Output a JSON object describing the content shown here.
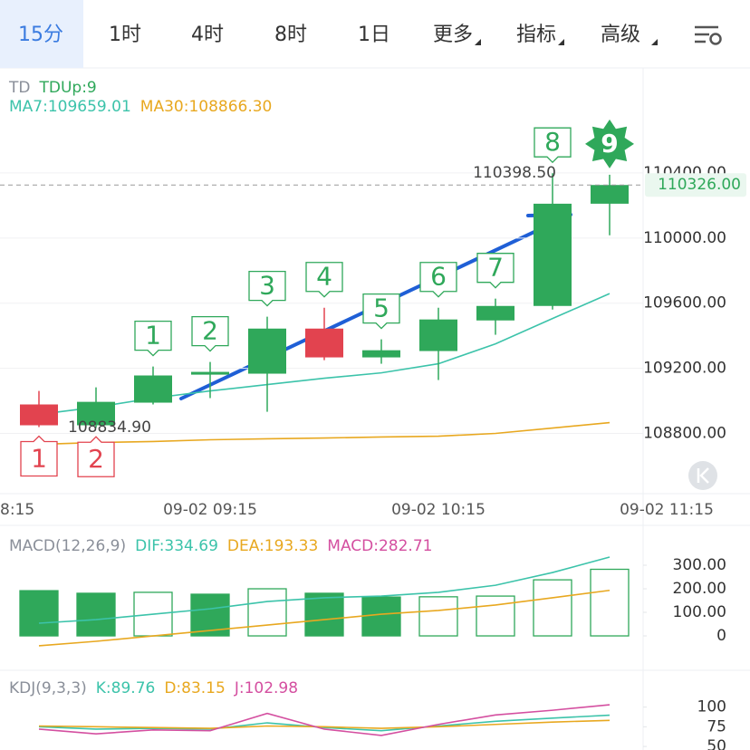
{
  "tabs": [
    "15分",
    "1时",
    "4时",
    "8时",
    "1日",
    "更多",
    "指标",
    "高级"
  ],
  "active_tab": 0,
  "chart_data": [
    {
      "type": "candlestick",
      "legend": [
        {
          "text": "TD",
          "color": "#8a8f99"
        },
        {
          "text": "TDUp:9",
          "color": "#2fa85a"
        },
        {
          "text": "MA7:109659.01",
          "color": "#3cc3aa"
        },
        {
          "text": "MA30:108866.30",
          "color": "#e8a820"
        }
      ],
      "open": [
        108978,
        108850,
        108989,
        109161,
        109167,
        109444,
        109267,
        109306,
        109494,
        109583,
        110211
      ],
      "high": [
        109061,
        109083,
        109211,
        109239,
        109517,
        109572,
        109378,
        109572,
        109628,
        110398.5,
        110389
      ],
      "low": [
        108839,
        108834.9,
        108978,
        109017,
        108933,
        109250,
        109228,
        109128,
        109406,
        109561,
        110017
      ],
      "close": [
        108850,
        108994,
        109156,
        109178,
        109444,
        109267,
        109311,
        109500,
        109583,
        110211,
        110326
      ],
      "up_color": "#2fa85a",
      "down_color": "#e2434f",
      "series": [
        {
          "color": "#3cc3aa",
          "values": [
            108917,
            108961,
            109017,
            109061,
            109100,
            109139,
            109172,
            109228,
            109350,
            109506,
            109659.01
          ]
        },
        {
          "color": "#e8a820",
          "values": [
            108733,
            108744,
            108750,
            108761,
            108767,
            108772,
            108778,
            108783,
            108800,
            108833,
            108866.3
          ]
        }
      ],
      "td_up": [
        null,
        null,
        "1",
        "2",
        "3",
        "4",
        "5",
        "6",
        "7",
        "8",
        "9"
      ],
      "td_down": [
        "1",
        "2",
        null,
        null,
        null,
        null,
        null,
        null,
        null,
        null,
        null
      ],
      "high_marker": {
        "value": 110398.5,
        "label": "110398.50"
      },
      "low_marker": {
        "value": 108834.9,
        "label": "108834.90"
      },
      "last_price": {
        "value": 110326,
        "label": "110326.00"
      },
      "ylim": [
        108430,
        111045
      ],
      "yticks": [
        {
          "value": 110400,
          "label": "110400.00"
        },
        {
          "value": 110000,
          "label": "110000.00"
        },
        {
          "value": 109600,
          "label": "109600.00"
        },
        {
          "value": 109200,
          "label": "109200.00"
        },
        {
          "value": 108800,
          "label": "108800.00"
        }
      ],
      "xticks": [
        {
          "value": -1,
          "label": "8:15"
        },
        {
          "value": 3,
          "label": "09-02 09:15"
        },
        {
          "value": 7,
          "label": "09-02 10:15"
        },
        {
          "value": 11,
          "label": "09-02 11:15"
        }
      ],
      "grid": true
    },
    {
      "type": "bar",
      "legend": [
        {
          "text": "MACD(12,26,9)",
          "color": "#8a8f99"
        },
        {
          "text": "DIF:334.69",
          "color": "#3cc3aa"
        },
        {
          "text": "DEA:193.33",
          "color": "#e8a820"
        },
        {
          "text": "MACD:282.71",
          "color": "#d44fa0"
        }
      ],
      "values": [
        192,
        181,
        185,
        177,
        200,
        181,
        165,
        166,
        169,
        238,
        282.71
      ],
      "color": "#2fa85a",
      "series": [
        {
          "color": "#3cc3aa",
          "values": [
            54,
            69,
            92,
            115,
            146,
            162,
            169,
            185,
            215,
            269,
            334.69
          ]
        },
        {
          "color": "#e8a820",
          "values": [
            -42,
            -23,
            0,
            23,
            46,
            69,
            92,
            108,
            131,
            162,
            193.33
          ]
        }
      ],
      "ylim": [
        -146,
        450
      ],
      "yticks": [
        {
          "value": 300,
          "label": "300.00"
        },
        {
          "value": 200,
          "label": "200.00"
        },
        {
          "value": 100,
          "label": "100.00"
        },
        0
      ]
    },
    {
      "type": "line",
      "legend": [
        {
          "text": "KDJ(9,3,3)",
          "color": "#8a8f99"
        },
        {
          "text": "K:89.76",
          "color": "#3cc3aa"
        },
        {
          "text": "D:83.15",
          "color": "#e8a820"
        },
        {
          "text": "J:102.98",
          "color": "#d44fa0"
        }
      ],
      "series": [
        {
          "color": "#3cc3aa",
          "values": [
            75,
            72,
            73,
            72,
            80,
            74,
            70,
            76,
            82,
            86,
            89.76
          ]
        },
        {
          "color": "#e8a820",
          "values": [
            76,
            75,
            74,
            73,
            76,
            75,
            73,
            75,
            78,
            81,
            83.15
          ]
        },
        {
          "color": "#d44fa0",
          "values": [
            72,
            66,
            71,
            70,
            92,
            72,
            64,
            78,
            90,
            96,
            102.98
          ]
        }
      ],
      "ylim": [
        45.5,
        141
      ],
      "yticks": [
        100,
        75,
        50
      ]
    }
  ]
}
